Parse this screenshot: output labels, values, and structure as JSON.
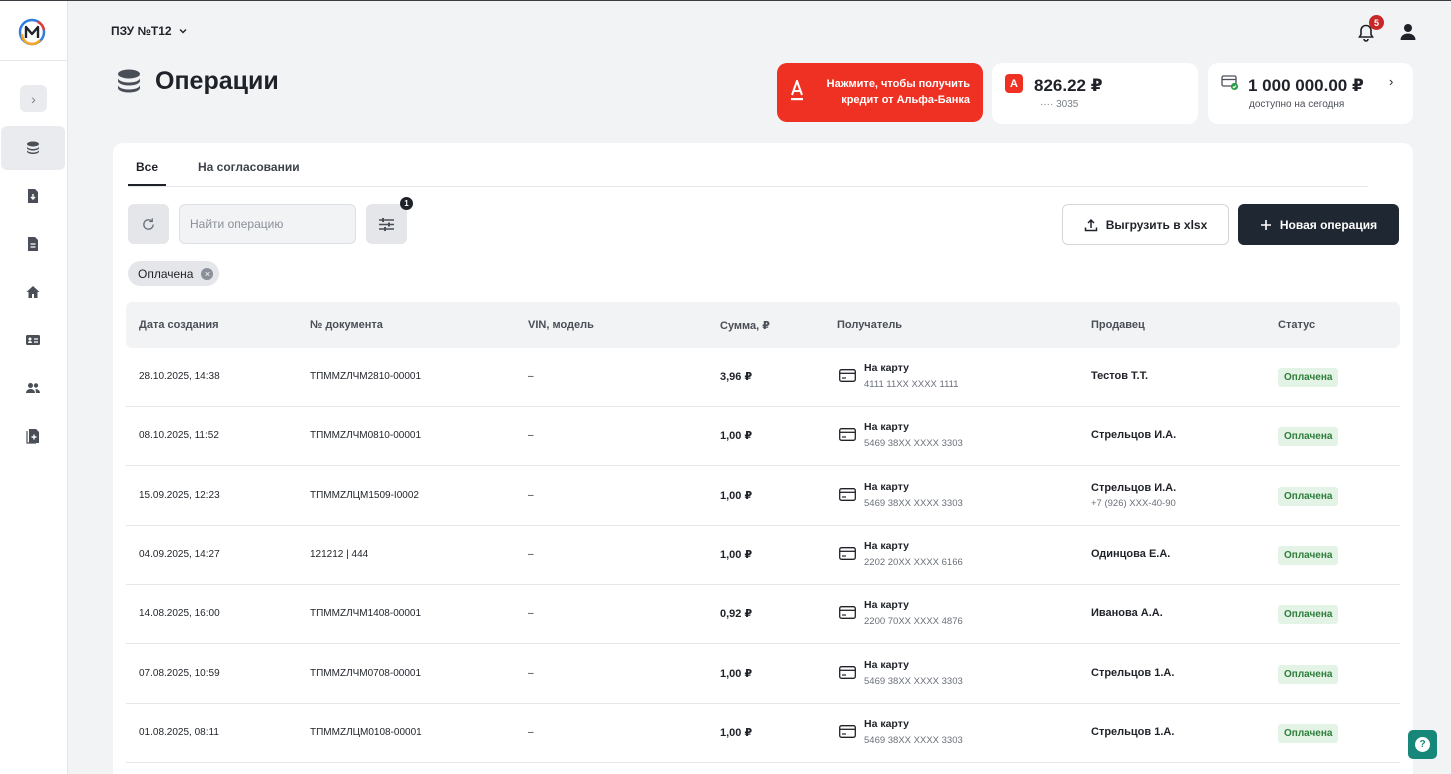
{
  "header": {
    "org_name": "ПЗУ №Т12",
    "notifications_count": "5"
  },
  "page": {
    "title": "Операции"
  },
  "cards": {
    "alfa": {
      "text": "Нажмите, чтобы получить кредит от Альфа-Банка",
      "logo_letter": "A"
    },
    "balance": {
      "amount": "826.22 ₽",
      "account": "···· 3035",
      "bank_letter": "А"
    },
    "limit": {
      "amount": "1 000 000.00 ₽",
      "note": "доступно на сегодня"
    }
  },
  "tabs": [
    {
      "label": "Все",
      "active": true
    },
    {
      "label": "На согласовании",
      "active": false
    }
  ],
  "toolbar": {
    "search_placeholder": "Найти операцию",
    "filter_count": "1",
    "export_label": "Выгрузить в xlsx",
    "new_label": "Новая операция"
  },
  "active_filter": {
    "label": "Оплачена"
  },
  "table": {
    "columns": [
      "Дата создания",
      "№ документа",
      "VIN, модель",
      "Сумма, ₽",
      "Получатель",
      "Продавец",
      "Статус"
    ],
    "rows": [
      {
        "date": "28.10.2025, 14:38",
        "doc": "ТПММZЛЧМ2810-00001",
        "vin": "–",
        "sum": "3,96 ₽",
        "recipient_type": "На карту",
        "recipient_card": "4111 11XX XXXX 1111",
        "seller": "Тестов Т.Т.",
        "seller_phone": "",
        "status": "Оплачена"
      },
      {
        "date": "08.10.2025, 11:52",
        "doc": "ТПММZЛЧМ0810-00001",
        "vin": "–",
        "sum": "1,00 ₽",
        "recipient_type": "На карту",
        "recipient_card": "5469 38XX XXXX 3303",
        "seller": "Стрельцов И.А.",
        "seller_phone": "",
        "status": "Оплачена"
      },
      {
        "date": "15.09.2025, 12:23",
        "doc": "ТПММZЛЦМ1509-I0002",
        "vin": "–",
        "sum": "1,00 ₽",
        "recipient_type": "На карту",
        "recipient_card": "5469 38XX XXXX 3303",
        "seller": "Стрельцов И.А.",
        "seller_phone": "+7 (926) XXX-40-90",
        "status": "Оплачена"
      },
      {
        "date": "04.09.2025, 14:27",
        "doc": "121212 | 444",
        "vin": "–",
        "sum": "1,00 ₽",
        "recipient_type": "На карту",
        "recipient_card": "2202 20XX XXXX 6166",
        "seller": "Одинцова Е.А.",
        "seller_phone": "",
        "status": "Оплачена"
      },
      {
        "date": "14.08.2025, 16:00",
        "doc": "ТПММZЛЧМ1408-00001",
        "vin": "–",
        "sum": "0,92 ₽",
        "recipient_type": "На карту",
        "recipient_card": "2200 70XX XXXX 4876",
        "seller": "Иванова А.А.",
        "seller_phone": "",
        "status": "Оплачена"
      },
      {
        "date": "07.08.2025, 10:59",
        "doc": "ТПММZЛЧМ0708-00001",
        "vin": "–",
        "sum": "1,00 ₽",
        "recipient_type": "На карту",
        "recipient_card": "5469 38XX XXXX 3303",
        "seller": "Стрельцов 1.А.",
        "seller_phone": "",
        "status": "Оплачена"
      },
      {
        "date": "01.08.2025, 08:11",
        "doc": "ТПММZЛЦМ0108-00001",
        "vin": "–",
        "sum": "1,00 ₽",
        "recipient_type": "На карту",
        "recipient_card": "5469 38XX XXXX 3303",
        "seller": "Стрельцов 1.А.",
        "seller_phone": "",
        "status": "Оплачена"
      }
    ]
  },
  "colors": {
    "accent_dark": "#1f2733",
    "alfa_red": "#ef3124",
    "status_green": "#2e7d3a",
    "help_teal": "#17877a"
  }
}
